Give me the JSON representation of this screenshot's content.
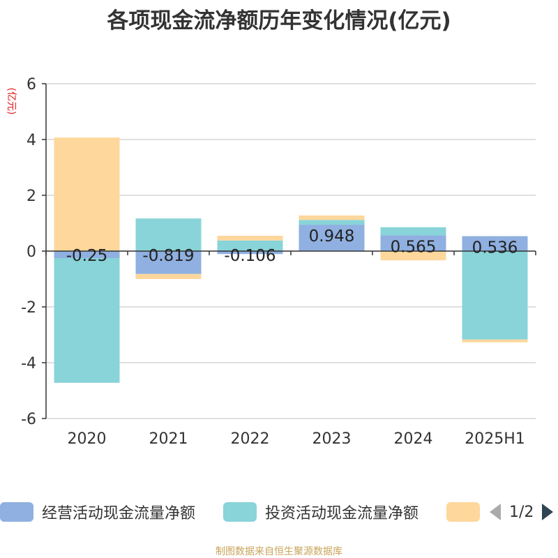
{
  "chart_data": {
    "type": "bar",
    "stacked": true,
    "title": "各项现金流净额历年变化情况(亿元)",
    "ylabel": "(亿元)",
    "categories": [
      "2020",
      "2021",
      "2022",
      "2023",
      "2024",
      "2025H1"
    ],
    "ylim": [
      -6,
      6
    ],
    "yticks": [
      -6,
      -4,
      -2,
      0,
      2,
      4,
      6
    ],
    "grid": true,
    "series": [
      {
        "name": "经营活动现金流量净额",
        "color": "#8fb0e0",
        "values": [
          -0.25,
          -0.819,
          -0.106,
          0.948,
          0.565,
          0.536
        ],
        "labels": [
          "-0.25",
          "-0.819",
          "-0.106",
          "0.948",
          "0.565",
          "0.536"
        ]
      },
      {
        "name": "投资活动现金流量净额",
        "color": "#88d4d8",
        "values": [
          -4.47,
          1.17,
          0.38,
          0.17,
          0.29,
          -3.17
        ]
      },
      {
        "name": "",
        "color": "#fdd79b",
        "values": [
          4.07,
          -0.18,
          0.17,
          0.16,
          -0.33,
          -0.1
        ]
      }
    ]
  },
  "legend": {
    "items": [
      {
        "label": "经营活动现金流量净额",
        "color": "#8fb0e0"
      },
      {
        "label": "投资活动现金流量净额",
        "color": "#88d4d8"
      },
      {
        "label": "",
        "color": "#fdd79b"
      }
    ],
    "page_indicator": "1/2"
  },
  "source": "制图数据来自恒生聚源数据库"
}
